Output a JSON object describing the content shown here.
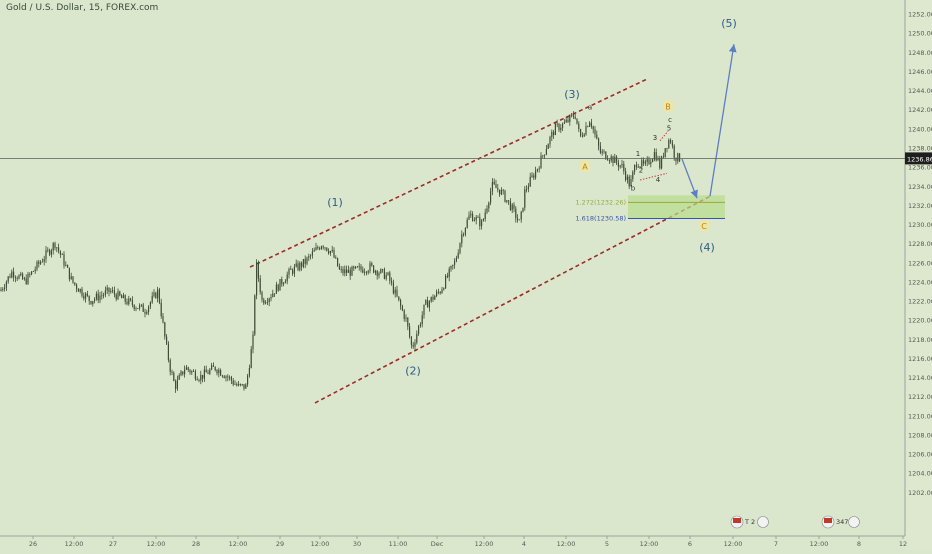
{
  "chart_data": {
    "type": "line",
    "title": "Gold / U.S. Dollar, 15, FOREX.com",
    "ylim": [
      1200,
      1253
    ],
    "y_ticks": [
      1202,
      1204,
      1206,
      1208,
      1210,
      1212,
      1214,
      1216,
      1218,
      1220,
      1222,
      1224,
      1226,
      1228,
      1230,
      1232,
      1234,
      1236,
      1238,
      1240,
      1242,
      1244,
      1246,
      1248,
      1250,
      1252
    ],
    "x_ticks": [
      "26",
      "12:00",
      "27",
      "12:00",
      "28",
      "12:00",
      "29",
      "12:00",
      "30",
      "11:00",
      "Dec",
      "12:00",
      "4",
      "12:00",
      "5",
      "12:00",
      "6",
      "12:00",
      "7",
      "12:00",
      "8",
      "12"
    ],
    "current_price": 1236.86,
    "current_price_label": "1236.86",
    "price_path": [
      [
        0,
        1223
      ],
      [
        12,
        1225
      ],
      [
        25,
        1224
      ],
      [
        40,
        1226
      ],
      [
        55,
        1228
      ],
      [
        62,
        1226.5
      ],
      [
        72,
        1224
      ],
      [
        90,
        1222
      ],
      [
        110,
        1223
      ],
      [
        125,
        1222
      ],
      [
        145,
        1221
      ],
      [
        158,
        1223
      ],
      [
        165,
        1218
      ],
      [
        170,
        1215
      ],
      [
        175,
        1213
      ],
      [
        185,
        1215
      ],
      [
        200,
        1214
      ],
      [
        215,
        1215
      ],
      [
        228,
        1214
      ],
      [
        238,
        1213
      ],
      [
        246,
        1213
      ],
      [
        253,
        1218
      ],
      [
        256,
        1226
      ],
      [
        262,
        1222
      ],
      [
        270,
        1222.5
      ],
      [
        290,
        1225
      ],
      [
        305,
        1226
      ],
      [
        322,
        1228
      ],
      [
        332,
        1227
      ],
      [
        340,
        1225
      ],
      [
        350,
        1225
      ],
      [
        370,
        1225.5
      ],
      [
        388,
        1224.5
      ],
      [
        398,
        1222
      ],
      [
        406,
        1220
      ],
      [
        412,
        1217
      ],
      [
        418,
        1219
      ],
      [
        425,
        1221.5
      ],
      [
        440,
        1223
      ],
      [
        455,
        1226
      ],
      [
        462,
        1229
      ],
      [
        470,
        1231
      ],
      [
        482,
        1230
      ],
      [
        492,
        1234
      ],
      [
        500,
        1233.5
      ],
      [
        510,
        1232
      ],
      [
        520,
        1230
      ],
      [
        525,
        1233.5
      ],
      [
        538,
        1236
      ],
      [
        548,
        1238.5
      ],
      [
        555,
        1240
      ],
      [
        565,
        1240.5
      ],
      [
        575,
        1241.5
      ],
      [
        580,
        1239
      ],
      [
        590,
        1241
      ],
      [
        600,
        1237.5
      ],
      [
        610,
        1237
      ],
      [
        622,
        1236
      ],
      [
        630,
        1234
      ],
      [
        636,
        1236.5
      ],
      [
        645,
        1236
      ],
      [
        655,
        1237.5
      ],
      [
        660,
        1236
      ],
      [
        665,
        1238
      ],
      [
        670,
        1239
      ],
      [
        675,
        1237
      ],
      [
        680,
        1236.86
      ]
    ],
    "projection": [
      [
        682,
        1236.8
      ],
      [
        697,
        1232.7
      ],
      [
        710,
        1232.9
      ],
      [
        734,
        1248.8
      ]
    ],
    "channel_upper": [
      [
        250,
        1225.5
      ],
      [
        648,
        1245.2
      ]
    ],
    "channel_lower": [
      [
        315,
        1211.3
      ],
      [
        712,
        1233
      ]
    ],
    "wave_labels": [
      {
        "text": "(1)",
        "x": 335,
        "y": 1232.3,
        "color": "#2c5d8a"
      },
      {
        "text": "(2)",
        "x": 413,
        "y": 1214.7,
        "color": "#2c5d8a"
      },
      {
        "text": "(3)",
        "x": 572,
        "y": 1243.6,
        "color": "#2c5d8a"
      },
      {
        "text": "(4)",
        "x": 707,
        "y": 1227.6,
        "color": "#2c5d8a"
      },
      {
        "text": "(5)",
        "x": 729,
        "y": 1251,
        "color": "#2c5d8a"
      },
      {
        "text": "A",
        "x": 585,
        "y": 1236,
        "color": "#b8860b"
      },
      {
        "text": "B",
        "x": 668,
        "y": 1242.3,
        "color": "#b8860b"
      },
      {
        "text": "C",
        "x": 704,
        "y": 1229.8,
        "color": "#b8860b"
      },
      {
        "text": "a",
        "x": 590,
        "y": 1242.3,
        "color": "#333333"
      },
      {
        "text": "b",
        "x": 633,
        "y": 1233.8,
        "color": "#333333"
      },
      {
        "text": "c",
        "x": 670,
        "y": 1241,
        "color": "#333333"
      },
      {
        "text": "1",
        "x": 638,
        "y": 1237.4,
        "color": "#333333"
      },
      {
        "text": "2",
        "x": 641,
        "y": 1235.7,
        "color": "#333333"
      },
      {
        "text": "3",
        "x": 655,
        "y": 1239.1,
        "color": "#333333"
      },
      {
        "text": "4",
        "x": 658,
        "y": 1234.7,
        "color": "#333333"
      },
      {
        "text": "5",
        "x": 669,
        "y": 1240.1,
        "color": "#333333"
      }
    ],
    "fib_zone": {
      "top": 1233,
      "bottom": 1230.6,
      "x1": 628,
      "x2": 725
    },
    "fib_labels": [
      {
        "text": "1.272(1232.26)",
        "value": 1232.26,
        "color": "#9aa83a"
      },
      {
        "text": "1.618(1230.58)",
        "value": 1230.58,
        "color": "#3a52b0"
      }
    ],
    "event_flags": [
      "T 2 2 2",
      "347"
    ],
    "colors": {
      "background": "#dbe7cc",
      "candles": "#3f4c36",
      "channel": "#9b2a2a",
      "projection": "#5b7fc2",
      "fib_fill": "#b7dc8c",
      "price_line": "#5a5f58",
      "axis_text": "#555b55"
    }
  }
}
